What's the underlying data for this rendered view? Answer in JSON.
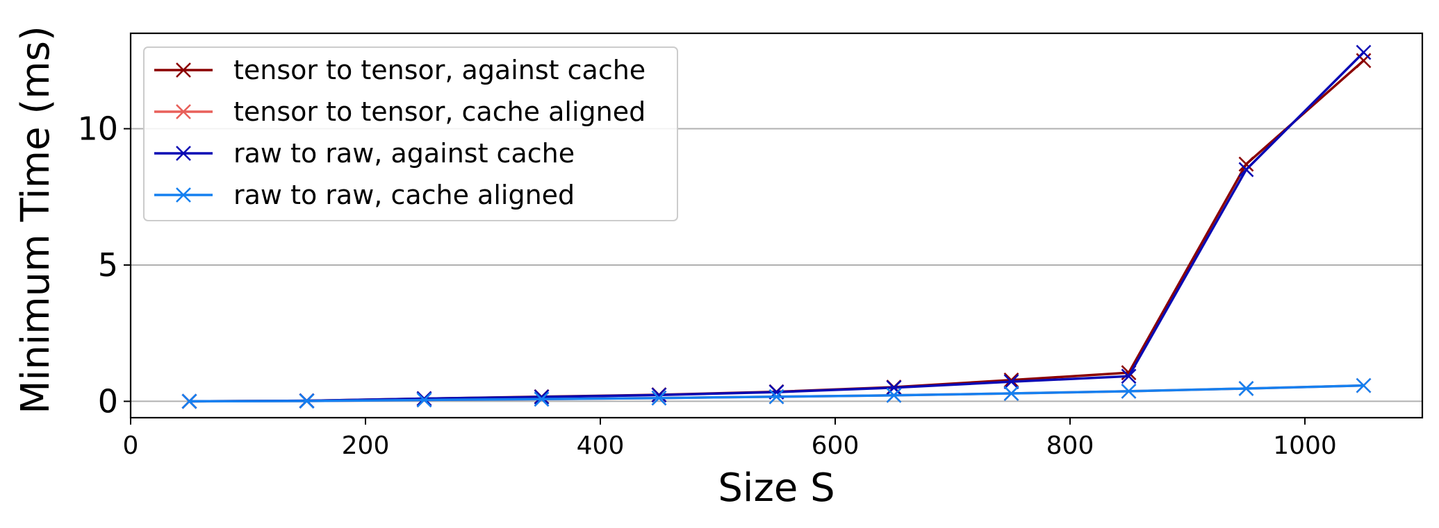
{
  "chart_data": {
    "type": "line",
    "title": "",
    "xlabel": "Size S",
    "ylabel": "Minimum Time (ms)",
    "xlim": [
      0,
      1100
    ],
    "ylim": [
      -0.6,
      13.5
    ],
    "xticks": [
      0,
      200,
      400,
      600,
      800,
      1000
    ],
    "yticks": [
      0,
      5,
      10
    ],
    "grid": "y",
    "legend_position": "top-left",
    "x": [
      50,
      150,
      250,
      350,
      450,
      550,
      650,
      750,
      850,
      950,
      1050
    ],
    "series": [
      {
        "name": "tensor to tensor, against cache",
        "color": "#8b0000",
        "marker": "x",
        "values": [
          0.0,
          0.02,
          0.1,
          0.17,
          0.24,
          0.35,
          0.52,
          0.78,
          1.05,
          8.7,
          12.5
        ]
      },
      {
        "name": "tensor to tensor, cache aligned",
        "color": "#e8605a",
        "marker": "x",
        "values": [
          0.0,
          0.01,
          0.05,
          0.08,
          0.12,
          0.17,
          0.22,
          0.29,
          0.37,
          0.47,
          0.58
        ]
      },
      {
        "name": "raw to raw, against cache",
        "color": "#0a0ab4",
        "marker": "x",
        "values": [
          0.0,
          0.02,
          0.1,
          0.16,
          0.23,
          0.34,
          0.5,
          0.72,
          0.92,
          8.5,
          12.8
        ]
      },
      {
        "name": "raw to raw, cache aligned",
        "color": "#1580f0",
        "marker": "x",
        "values": [
          0.0,
          0.01,
          0.05,
          0.08,
          0.12,
          0.17,
          0.22,
          0.29,
          0.37,
          0.47,
          0.58
        ]
      }
    ]
  }
}
